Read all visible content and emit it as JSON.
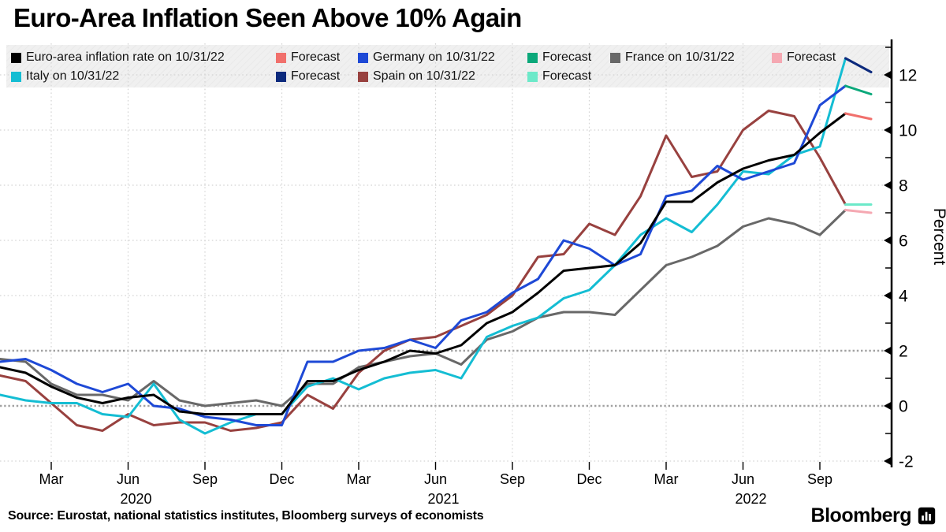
{
  "title": "Euro-Area Inflation Seen Above 10% Again",
  "source_note": "Source: Eurostat, national statistics institutes, Bloomberg surveys of economists",
  "brand": {
    "wordmark": "Bloomberg",
    "icon": "bloomberg-terminal-icon"
  },
  "colors": {
    "euro_area": "#000000",
    "euro_area_forecast": "#f1706c",
    "germany": "#1e49d6",
    "germany_forecast": "#0aa87a",
    "france": "#686868",
    "france_forecast": "#f5a8b2",
    "italy": "#14bdd3",
    "italy_forecast": "#0c2a7d",
    "spain": "#98413f",
    "spain_forecast": "#6ce9c9",
    "gridline_light": "#d4d4d4",
    "gridline_emphasis": "#a2a2a2",
    "legend_band": "#f0f0f0",
    "axis": "#000000"
  },
  "legend": {
    "items": [
      {
        "label": "Euro-area inflation rate on 10/31/22",
        "color": "#000000"
      },
      {
        "label": "Forecast",
        "color": "#f1706c"
      },
      {
        "label": "Germany on 10/31/22",
        "color": "#1e49d6"
      },
      {
        "label": "Forecast",
        "color": "#0aa87a"
      },
      {
        "label": "France on 10/31/22",
        "color": "#686868"
      },
      {
        "label": "Forecast",
        "color": "#f5a8b2"
      },
      {
        "label": "Italy on 10/31/22",
        "color": "#14bdd3"
      },
      {
        "label": "Forecast",
        "color": "#0c2a7d"
      },
      {
        "label": "Spain on 10/31/22",
        "color": "#98413f"
      },
      {
        "label": "Forecast",
        "color": "#6ce9c9"
      }
    ]
  },
  "chart_data": {
    "type": "line",
    "title": "Euro-Area Inflation Seen Above 10% Again",
    "ylabel": "Percent",
    "ylim": [
      -2.3,
      13.1
    ],
    "y_ticks": [
      -2,
      0,
      2,
      4,
      6,
      8,
      10,
      12
    ],
    "y_minor_ticks": [
      -1,
      1,
      3,
      5,
      7,
      9,
      11,
      13
    ],
    "emphasized_gridlines": [
      0,
      2
    ],
    "grid": true,
    "legend_position": "top",
    "x_axis_start": "2020-01",
    "x_months_count": 35,
    "x_quarter_ticks": [
      {
        "label": "Mar",
        "month_index": 2
      },
      {
        "label": "Jun",
        "month_index": 5
      },
      {
        "label": "Sep",
        "month_index": 8
      },
      {
        "label": "Dec",
        "month_index": 11
      },
      {
        "label": "Mar",
        "month_index": 14
      },
      {
        "label": "Jun",
        "month_index": 17
      },
      {
        "label": "Sep",
        "month_index": 20
      },
      {
        "label": "Dec",
        "month_index": 23
      },
      {
        "label": "Mar",
        "month_index": 26
      },
      {
        "label": "Jun",
        "month_index": 29
      },
      {
        "label": "Sep",
        "month_index": 32
      }
    ],
    "year_labels": [
      {
        "label": "2020",
        "month_index": 5
      },
      {
        "label": "2021",
        "month_index": 17
      },
      {
        "label": "2022",
        "month_index": 29
      }
    ],
    "series": [
      {
        "key": "france",
        "name": "France on 10/31/22",
        "color": "#686868",
        "values": [
          1.7,
          1.6,
          0.8,
          0.4,
          0.4,
          0.2,
          0.9,
          0.2,
          0.0,
          0.1,
          0.2,
          0.0,
          0.8,
          0.8,
          1.4,
          1.6,
          1.8,
          1.9,
          1.5,
          2.4,
          2.7,
          3.2,
          3.4,
          3.4,
          3.3,
          4.2,
          5.1,
          5.4,
          5.8,
          6.5,
          6.8,
          6.6,
          6.2,
          7.1
        ]
      },
      {
        "key": "spain",
        "name": "Spain on 10/31/22",
        "color": "#98413f",
        "values": [
          1.1,
          0.9,
          0.1,
          -0.7,
          -0.9,
          -0.3,
          -0.7,
          -0.6,
          -0.6,
          -0.9,
          -0.8,
          -0.6,
          0.4,
          -0.1,
          1.2,
          2.0,
          2.4,
          2.5,
          2.9,
          3.3,
          4.0,
          5.4,
          5.5,
          6.6,
          6.2,
          7.6,
          9.8,
          8.3,
          8.5,
          10.0,
          10.7,
          10.5,
          9.0,
          7.3
        ]
      },
      {
        "key": "italy",
        "name": "Italy on 10/31/22",
        "color": "#14bdd3",
        "values": [
          0.4,
          0.2,
          0.1,
          0.1,
          -0.3,
          -0.4,
          0.8,
          -0.5,
          -1.0,
          -0.6,
          -0.3,
          -0.3,
          0.7,
          1.0,
          0.6,
          1.0,
          1.2,
          1.3,
          1.0,
          2.5,
          2.9,
          3.2,
          3.9,
          4.2,
          5.1,
          6.2,
          6.8,
          6.3,
          7.3,
          8.5,
          8.4,
          9.1,
          9.4,
          12.6
        ]
      },
      {
        "key": "germany",
        "name": "Germany on 10/31/22",
        "color": "#1e49d6",
        "values": [
          1.6,
          1.7,
          1.3,
          0.8,
          0.5,
          0.8,
          0.0,
          -0.1,
          -0.4,
          -0.5,
          -0.7,
          -0.7,
          1.6,
          1.6,
          2.0,
          2.1,
          2.4,
          2.1,
          3.1,
          3.4,
          4.1,
          4.6,
          6.0,
          5.7,
          5.1,
          5.5,
          7.6,
          7.8,
          8.7,
          8.2,
          8.5,
          8.8,
          10.9,
          11.6
        ]
      },
      {
        "key": "euro-area",
        "name": "Euro-area inflation rate on 10/31/22",
        "color": "#000000",
        "values": [
          1.4,
          1.2,
          0.7,
          0.3,
          0.1,
          0.3,
          0.4,
          -0.2,
          -0.3,
          -0.3,
          -0.3,
          -0.3,
          0.9,
          0.9,
          1.3,
          1.6,
          2.0,
          1.9,
          2.2,
          3.0,
          3.4,
          4.1,
          4.9,
          5.0,
          5.1,
          5.9,
          7.4,
          7.4,
          8.1,
          8.6,
          8.9,
          9.1,
          9.9,
          10.6
        ]
      }
    ],
    "forecasts": [
      {
        "key": "france-forecast",
        "name": "Forecast",
        "for_series": "france",
        "color": "#f5a8b2",
        "start_index": 33,
        "values": [
          7.1,
          7.0
        ]
      },
      {
        "key": "spain-forecast",
        "name": "Forecast",
        "for_series": "spain",
        "color": "#6ce9c9",
        "start_index": 33,
        "values": [
          7.3,
          7.3
        ]
      },
      {
        "key": "euro-area-forecast",
        "name": "Forecast",
        "for_series": "euro-area",
        "color": "#f1706c",
        "start_index": 33,
        "values": [
          10.6,
          10.4
        ]
      },
      {
        "key": "germany-forecast",
        "name": "Forecast",
        "for_series": "germany",
        "color": "#0aa87a",
        "start_index": 33,
        "values": [
          11.6,
          11.3
        ]
      },
      {
        "key": "italy-forecast",
        "name": "Forecast",
        "for_series": "italy",
        "color": "#0c2a7d",
        "start_index": 33,
        "values": [
          12.6,
          12.1
        ]
      }
    ]
  }
}
